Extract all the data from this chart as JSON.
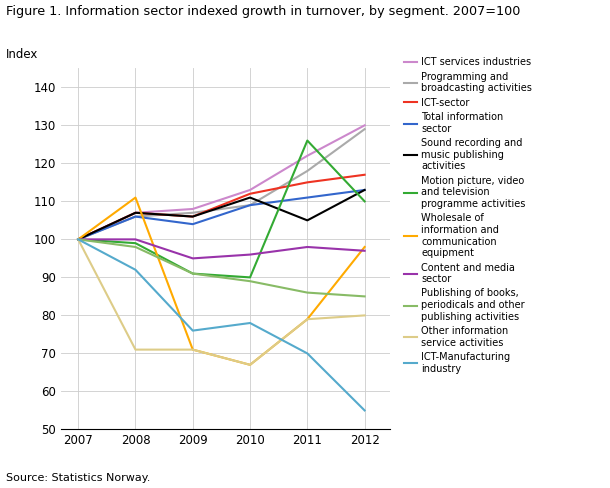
{
  "title": "Figure 1. Information sector indexed growth in turnover, by segment. 2007=100",
  "ylabel": "Index",
  "source": "Source: Statistics Norway.",
  "years": [
    2007,
    2008,
    2009,
    2010,
    2011,
    2012
  ],
  "ylim": [
    50,
    145
  ],
  "yticks": [
    50,
    60,
    70,
    80,
    90,
    100,
    110,
    120,
    130,
    140
  ],
  "series": [
    {
      "label": "ICT services industries",
      "color": "#cc88cc",
      "values": [
        100,
        107,
        108,
        113,
        122,
        130
      ]
    },
    {
      "label": "Programming and\nbroadcasting activities",
      "color": "#aaaaaa",
      "values": [
        100,
        106,
        107,
        109,
        118,
        129
      ]
    },
    {
      "label": "ICT-sector",
      "color": "#ee3322",
      "values": [
        100,
        107,
        106,
        112,
        115,
        117
      ]
    },
    {
      "label": "Total information\nsector",
      "color": "#3366cc",
      "values": [
        100,
        106,
        104,
        109,
        111,
        113
      ]
    },
    {
      "label": "Sound recording and\nmusic publishing\nactivities",
      "color": "#000000",
      "values": [
        100,
        107,
        106,
        111,
        105,
        113
      ]
    },
    {
      "label": "Motion picture, video\nand television\nprogramme activities",
      "color": "#33aa33",
      "values": [
        100,
        99,
        91,
        90,
        126,
        110
      ]
    },
    {
      "label": "Wholesale of\ninformation and\ncommunication\nequipment",
      "color": "#ffaa00",
      "values": [
        100,
        111,
        71,
        67,
        79,
        98
      ]
    },
    {
      "label": "Content and media\nsector",
      "color": "#9933aa",
      "values": [
        100,
        100,
        95,
        96,
        98,
        97
      ]
    },
    {
      "label": "Publishing of books,\nperiodicals and other\npublishing activities",
      "color": "#88bb66",
      "values": [
        100,
        98,
        91,
        89,
        86,
        85
      ]
    },
    {
      "label": "Other information\nservice activities",
      "color": "#ddcc88",
      "values": [
        100,
        71,
        71,
        67,
        79,
        80
      ]
    },
    {
      "label": "ICT-Manufacturing\nindustry",
      "color": "#55aacc",
      "values": [
        100,
        92,
        76,
        78,
        70,
        55
      ]
    }
  ]
}
